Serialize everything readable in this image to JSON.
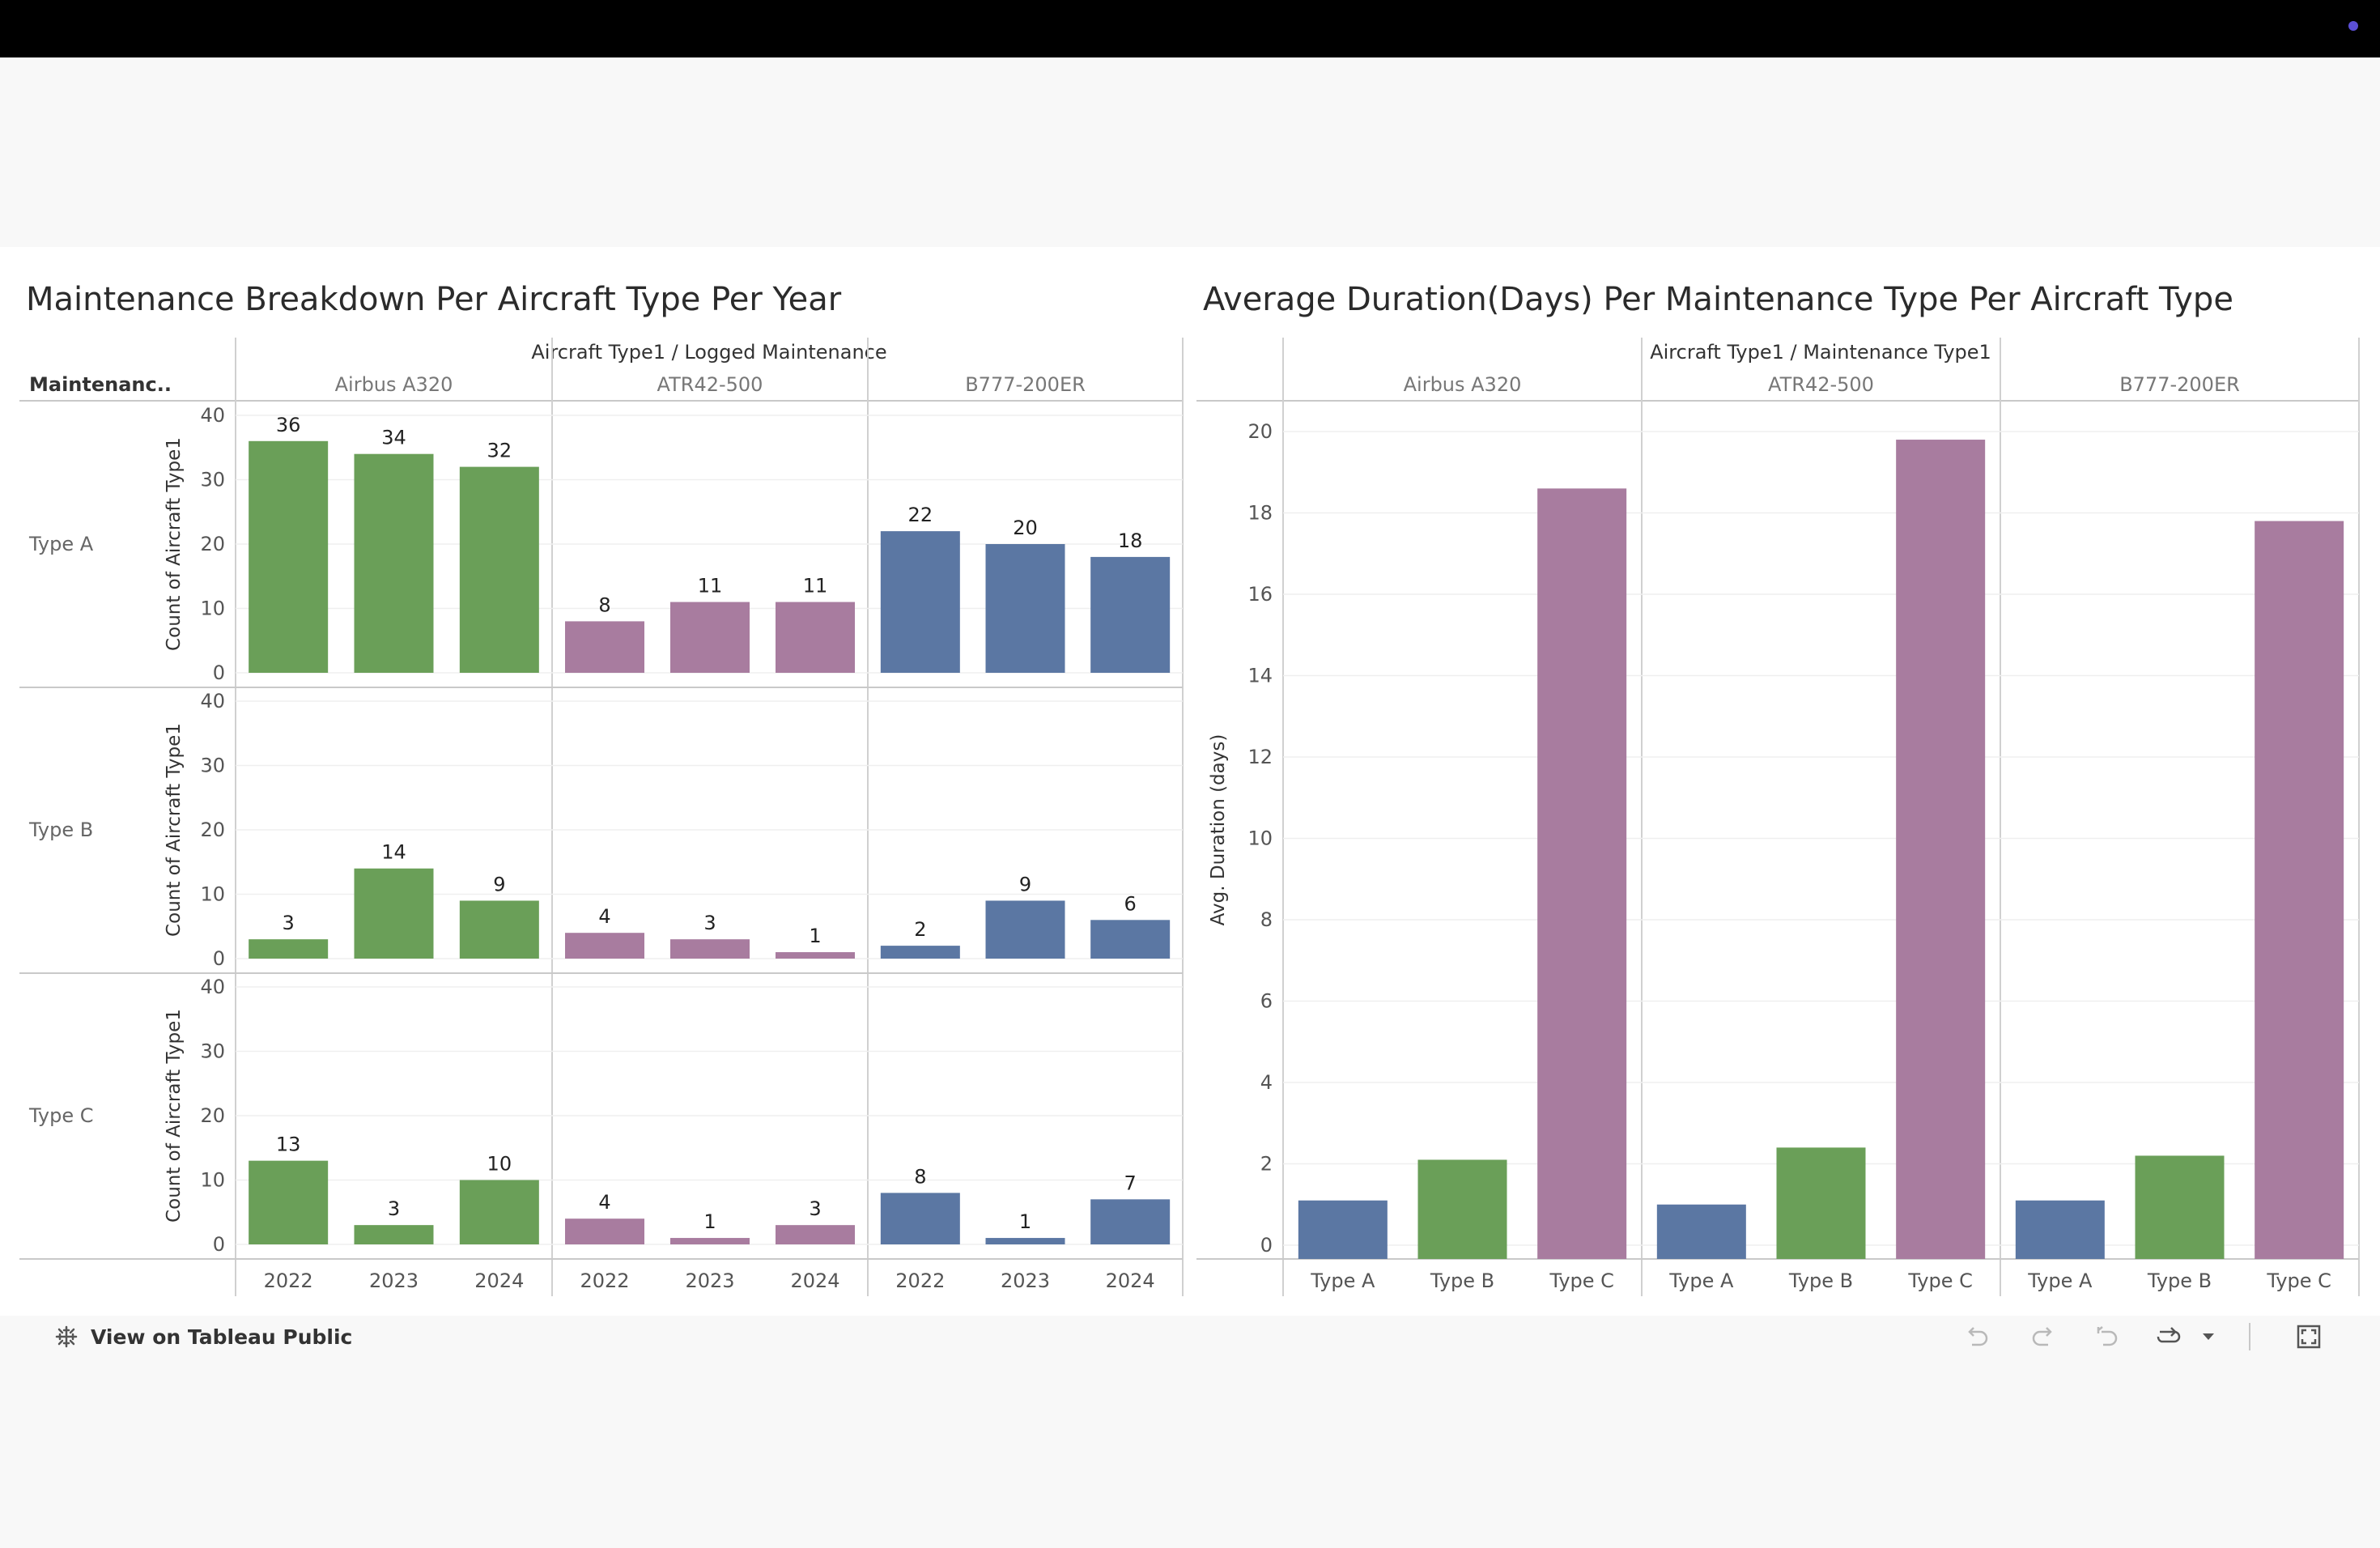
{
  "footer": {
    "view_label": "View on Tableau Public"
  },
  "colors": {
    "green": "#6a9f58",
    "purple": "#a87c9f",
    "blue": "#5b77a3"
  },
  "icons": [
    "tableau-logo-icon",
    "undo-icon",
    "redo-icon",
    "revert-icon",
    "refresh-icon",
    "dropdown-caret-icon",
    "fullscreen-icon"
  ],
  "chart_data": [
    {
      "type": "bar",
      "title": "Maintenance Breakdown Per Aircraft Type Per Year",
      "column_header": "Aircraft Type1 / Logged Maintenance",
      "row_header": "Maintenanc..",
      "ylabel": "Count of Aircraft Type1",
      "ylim": [
        0,
        40
      ],
      "yticks": [
        "0",
        "10",
        "20",
        "30",
        "40"
      ],
      "panels": [
        "Airbus A320",
        "ATR42-500",
        "B777-200ER"
      ],
      "panel_colors": [
        "#6a9f58",
        "#a87c9f",
        "#5b77a3"
      ],
      "rows": [
        "Type A",
        "Type B",
        "Type C"
      ],
      "categories": [
        "2022",
        "2023",
        "2024"
      ],
      "values": [
        [
          [
            36,
            34,
            32
          ],
          [
            8,
            11,
            11
          ],
          [
            22,
            20,
            18
          ]
        ],
        [
          [
            3,
            14,
            9
          ],
          [
            4,
            3,
            1
          ],
          [
            2,
            9,
            6
          ]
        ],
        [
          [
            13,
            3,
            10
          ],
          [
            4,
            1,
            3
          ],
          [
            8,
            1,
            7
          ]
        ]
      ],
      "grid": true
    },
    {
      "type": "bar",
      "title": "Average Duration(Days) Per Maintenance Type Per Aircraft Type",
      "column_header": "Aircraft Type1 / Maintenance Type1",
      "ylabel": "Avg. Duration (days)",
      "ylim": [
        0,
        20
      ],
      "yticks": [
        "0",
        "2",
        "4",
        "6",
        "8",
        "10",
        "12",
        "14",
        "16",
        "18",
        "20"
      ],
      "panels": [
        "Airbus A320",
        "ATR42-500",
        "B777-200ER"
      ],
      "categories": [
        "Type A",
        "Type B",
        "Type C"
      ],
      "category_colors": [
        "#5b77a3",
        "#6a9f58",
        "#a87c9f"
      ],
      "values": [
        [
          1.1,
          2.1,
          18.6
        ],
        [
          1.0,
          2.4,
          19.8
        ],
        [
          1.1,
          2.2,
          17.8
        ]
      ],
      "grid": true
    }
  ]
}
